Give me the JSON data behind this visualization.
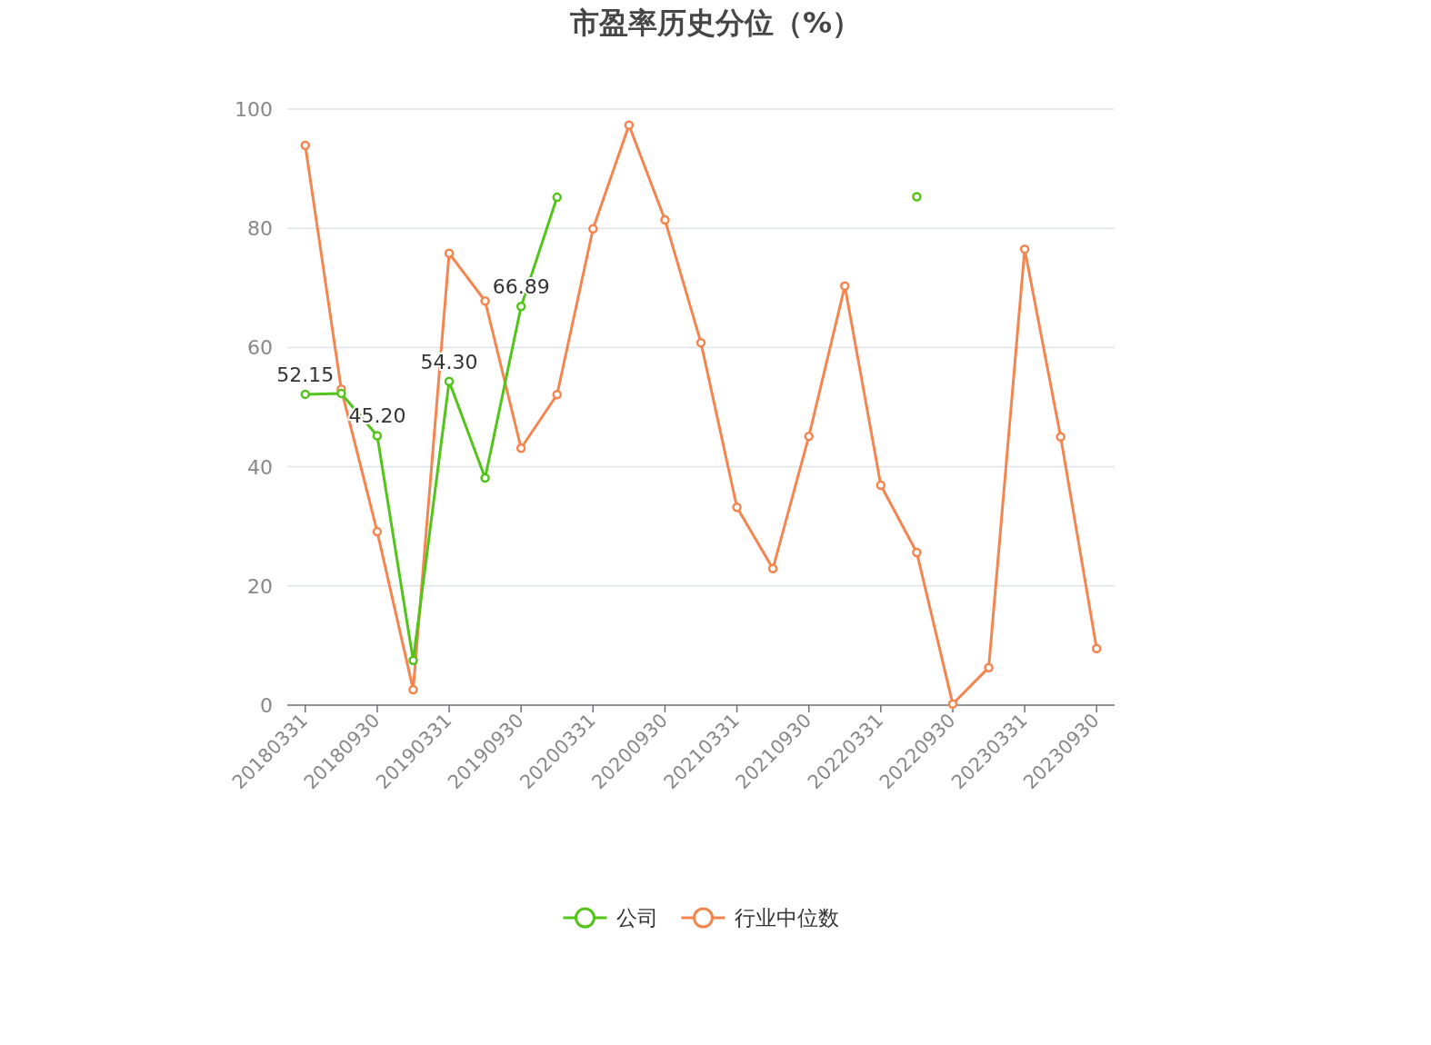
{
  "chart_data": {
    "type": "line",
    "title": "市盈率历史分位（%）",
    "categories": [
      "20180331",
      null,
      "20180930",
      null,
      "20190331",
      null,
      "20190930",
      null,
      "20200331",
      null,
      "20200930",
      null,
      "20210331",
      null,
      "20210930",
      null,
      "20220331",
      null,
      "20220930",
      null,
      "20230331",
      null,
      "20230930"
    ],
    "series": [
      {
        "name": "公司",
        "color": "#52c41a",
        "values": [
          52.15,
          52.3,
          45.2,
          7.5,
          54.3,
          38.1,
          66.89,
          85.2,
          null,
          null,
          null,
          null,
          null,
          null,
          null,
          null,
          null,
          85.3,
          null,
          null,
          null,
          null,
          null
        ],
        "value_labels": [
          "52.15",
          null,
          "45.20",
          null,
          "54.30",
          null,
          "66.89",
          null,
          null,
          null,
          null,
          null,
          null,
          null,
          null,
          null,
          null,
          null,
          null,
          null,
          null,
          null,
          null
        ]
      },
      {
        "name": "行业中位数",
        "color": "#f5854f",
        "values": [
          93.9,
          53.0,
          29.1,
          2.6,
          75.8,
          67.8,
          43.1,
          52.1,
          79.9,
          97.3,
          81.4,
          60.8,
          33.2,
          22.9,
          45.1,
          70.3,
          36.9,
          25.6,
          0.2,
          6.3,
          76.5,
          45.0,
          9.5
        ]
      }
    ],
    "ylim": [
      0,
      100
    ],
    "yticks": [
      0,
      20,
      40,
      60,
      80,
      100
    ],
    "grid": "y",
    "legend": "bottom",
    "marker": "circle"
  }
}
